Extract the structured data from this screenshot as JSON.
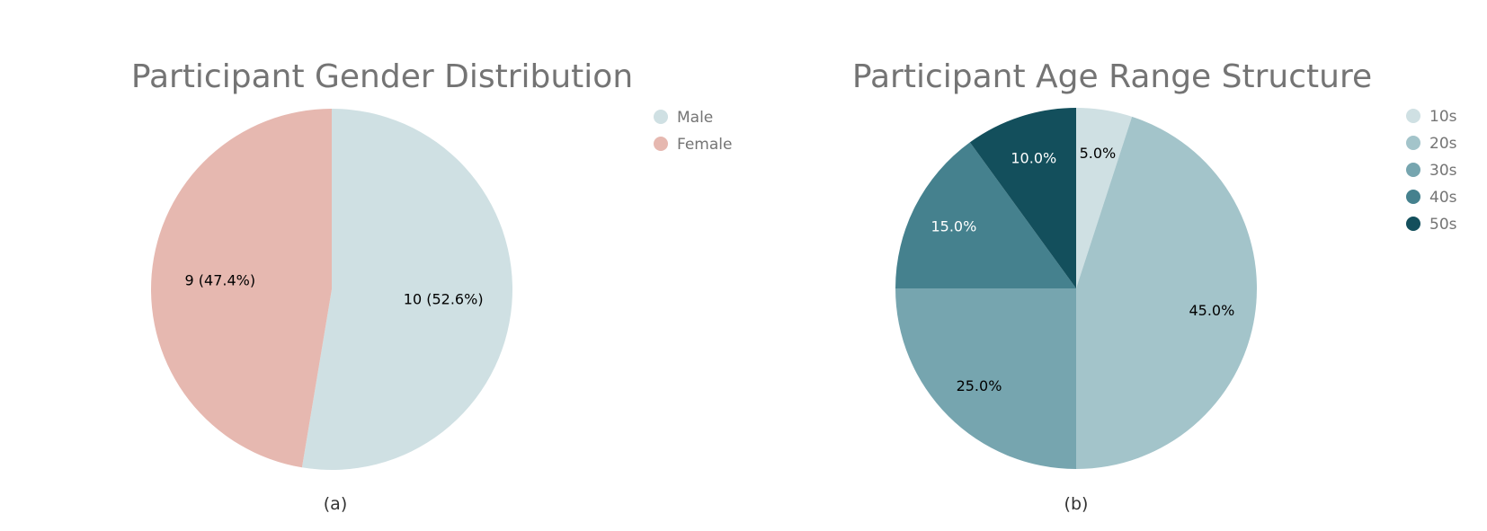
{
  "chart_data": [
    {
      "type": "pie",
      "title": "Participant Gender Distribution",
      "caption": "(a)",
      "legend_position": "right",
      "slices": [
        {
          "label": "Male",
          "value": 10,
          "percent": 52.6,
          "display": "10 (52.6%)",
          "color": "#cfe0e3",
          "text_color": "#000000"
        },
        {
          "label": "Female",
          "value": 9,
          "percent": 47.4,
          "display": "9 (47.4%)",
          "color": "#e6b8b0",
          "text_color": "#000000"
        }
      ]
    },
    {
      "type": "pie",
      "title": "Participant Age Range Structure",
      "caption": "(b)",
      "legend_position": "right",
      "slices": [
        {
          "label": "10s",
          "value": 5.0,
          "percent": 5.0,
          "display": "5.0%",
          "color": "#cfe0e3",
          "text_color": "#000000"
        },
        {
          "label": "20s",
          "value": 45.0,
          "percent": 45.0,
          "display": "45.0%",
          "color": "#a3c4ca",
          "text_color": "#000000"
        },
        {
          "label": "30s",
          "value": 25.0,
          "percent": 25.0,
          "display": "25.0%",
          "color": "#76a5af",
          "text_color": "#000000"
        },
        {
          "label": "40s",
          "value": 15.0,
          "percent": 15.0,
          "display": "15.0%",
          "color": "#45818e",
          "text_color": "#ffffff"
        },
        {
          "label": "50s",
          "value": 10.0,
          "percent": 10.0,
          "display": "10.0%",
          "color": "#134f5c",
          "text_color": "#ffffff"
        }
      ]
    }
  ]
}
